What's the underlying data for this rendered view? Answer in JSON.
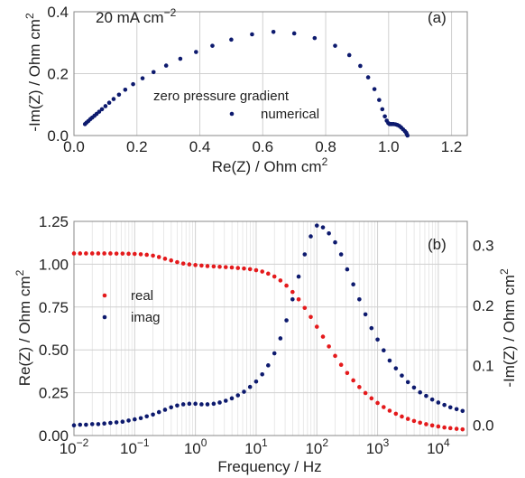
{
  "colors": {
    "real": "#e41a1c",
    "imag": "#0d1a6e",
    "grid": "#d0d0d0",
    "axis": "#888888"
  },
  "chart_data": [
    {
      "type": "scatter",
      "panel_label": "(a)",
      "annotation": "20 mA cm",
      "annotation_sup": "−2",
      "xlabel": "Re(Z) / Ohm cm",
      "xlabel_sup": "2",
      "ylabel": "-Im(Z) / Ohm cm",
      "ylabel_sup": "2",
      "xlim": [
        0.0,
        1.25
      ],
      "ylim": [
        0.0,
        0.4
      ],
      "xticks": [
        0.0,
        0.2,
        0.4,
        0.6,
        0.8,
        1.0,
        1.2
      ],
      "xtick_labels": [
        "0.0",
        "0.2",
        "0.4",
        "0.6",
        "0.8",
        "1.0",
        "1.2"
      ],
      "yticks": [
        0.0,
        0.2,
        0.4
      ],
      "ytick_labels": [
        "0.0",
        "0.2",
        "0.4"
      ],
      "grid": true,
      "legend": {
        "title": "zero pressure gradient",
        "entries": [
          "numerical"
        ],
        "placement": "center"
      },
      "series": [
        {
          "name": "numerical",
          "color": "#0d1a6e",
          "x": [
            0.035,
            0.04,
            0.046,
            0.052,
            0.058,
            0.065,
            0.072,
            0.08,
            0.089,
            0.1,
            0.112,
            0.126,
            0.143,
            0.163,
            0.188,
            0.218,
            0.253,
            0.293,
            0.338,
            0.388,
            0.44,
            0.5,
            0.566,
            0.634,
            0.7,
            0.765,
            0.83,
            0.875,
            0.91,
            0.935,
            0.955,
            0.97,
            0.98,
            0.988,
            0.994,
            0.999,
            1.003,
            1.007,
            1.011,
            1.016,
            1.022,
            1.028,
            1.034,
            1.04,
            1.046,
            1.052,
            1.056,
            1.058,
            1.06
          ],
          "y": [
            0.037,
            0.042,
            0.047,
            0.053,
            0.058,
            0.064,
            0.07,
            0.077,
            0.085,
            0.095,
            0.106,
            0.118,
            0.132,
            0.148,
            0.166,
            0.185,
            0.205,
            0.226,
            0.248,
            0.27,
            0.29,
            0.31,
            0.327,
            0.335,
            0.33,
            0.315,
            0.29,
            0.26,
            0.225,
            0.188,
            0.15,
            0.115,
            0.085,
            0.062,
            0.048,
            0.04,
            0.037,
            0.037,
            0.037,
            0.037,
            0.036,
            0.034,
            0.031,
            0.026,
            0.02,
            0.014,
            0.009,
            0.004,
            0.0
          ]
        }
      ]
    },
    {
      "type": "scatter",
      "panel_label": "(b)",
      "xlabel": "Frequency / Hz",
      "ylabel": "Re(Z) / Ohm cm",
      "ylabel_sup": "2",
      "y2label": "-Im(Z) / Ohm cm",
      "y2label_sup": "2",
      "x_scale": "log",
      "xlim": [
        0.01,
        30000
      ],
      "ylim": [
        0.0,
        1.25
      ],
      "y2lim": [
        -0.017,
        0.34
      ],
      "xticks": [
        0.01,
        0.1,
        1,
        10,
        100,
        1000,
        10000
      ],
      "xtick_labels": [
        "10",
        "10",
        "10",
        "10",
        "10",
        "10",
        "10"
      ],
      "xtick_sups": [
        "−2",
        "−1",
        "0",
        "1",
        "2",
        "3",
        "4"
      ],
      "yticks": [
        0.0,
        0.25,
        0.5,
        0.75,
        1.0,
        1.25
      ],
      "ytick_labels": [
        "0.00",
        "0.25",
        "0.50",
        "0.75",
        "1.00",
        "1.25"
      ],
      "y2ticks": [
        0.0,
        0.1,
        0.2,
        0.3
      ],
      "y2tick_labels": [
        "0.0",
        "0.1",
        "0.2",
        "0.3"
      ],
      "grid": true,
      "legend": {
        "entries": [
          "real",
          "imag"
        ],
        "placement": "center-left"
      },
      "series": [
        {
          "name": "real",
          "axis": "left",
          "color": "#e41a1c",
          "x": [
            0.01,
            0.0126,
            0.0158,
            0.02,
            0.0251,
            0.0316,
            0.0398,
            0.0501,
            0.0631,
            0.0794,
            0.1,
            0.126,
            0.158,
            0.2,
            0.251,
            0.316,
            0.398,
            0.501,
            0.631,
            0.794,
            1.0,
            1.26,
            1.58,
            2.0,
            2.51,
            3.16,
            3.98,
            5.01,
            6.31,
            7.94,
            10.0,
            12.6,
            15.8,
            20.0,
            25.1,
            31.6,
            39.8,
            50.1,
            63.1,
            79.4,
            100,
            126,
            158,
            200,
            251,
            316,
            398,
            501,
            631,
            794,
            1000,
            1260,
            1580,
            2000,
            2510,
            3160,
            3980,
            5010,
            6310,
            7940,
            10000,
            12600,
            15800,
            20000,
            25100,
            31600
          ],
          "y": [
            1.063,
            1.063,
            1.063,
            1.063,
            1.063,
            1.063,
            1.063,
            1.062,
            1.062,
            1.061,
            1.06,
            1.058,
            1.055,
            1.05,
            1.042,
            1.032,
            1.022,
            1.012,
            1.004,
            0.999,
            0.995,
            0.992,
            0.989,
            0.987,
            0.985,
            0.983,
            0.981,
            0.978,
            0.975,
            0.971,
            0.965,
            0.957,
            0.945,
            0.928,
            0.905,
            0.875,
            0.838,
            0.795,
            0.745,
            0.692,
            0.635,
            0.577,
            0.52,
            0.465,
            0.413,
            0.365,
            0.322,
            0.283,
            0.248,
            0.217,
            0.19,
            0.166,
            0.145,
            0.127,
            0.111,
            0.097,
            0.085,
            0.075,
            0.066,
            0.059,
            0.053,
            0.047,
            0.043,
            0.039,
            0.036,
            0.034
          ]
        },
        {
          "name": "imag",
          "axis": "right",
          "color": "#0d1a6e",
          "x": [
            0.01,
            0.0126,
            0.0158,
            0.02,
            0.0251,
            0.0316,
            0.0398,
            0.0501,
            0.0631,
            0.0794,
            0.1,
            0.126,
            0.158,
            0.2,
            0.251,
            0.316,
            0.398,
            0.501,
            0.631,
            0.794,
            1.0,
            1.26,
            1.58,
            2.0,
            2.51,
            3.16,
            3.98,
            5.01,
            6.31,
            7.94,
            10.0,
            12.6,
            15.8,
            20.0,
            25.1,
            31.6,
            39.8,
            50.1,
            63.1,
            79.4,
            100,
            126,
            158,
            200,
            251,
            316,
            398,
            501,
            631,
            794,
            1000,
            1260,
            1580,
            2000,
            2510,
            3160,
            3980,
            5010,
            6310,
            7940,
            10000,
            12600,
            15800,
            20000,
            25100,
            31600
          ],
          "y": [
            0.0,
            0.001,
            0.001,
            0.002,
            0.002,
            0.003,
            0.004,
            0.005,
            0.006,
            0.008,
            0.01,
            0.012,
            0.015,
            0.018,
            0.022,
            0.026,
            0.03,
            0.033,
            0.035,
            0.036,
            0.036,
            0.035,
            0.035,
            0.036,
            0.038,
            0.041,
            0.045,
            0.05,
            0.056,
            0.064,
            0.073,
            0.085,
            0.1,
            0.12,
            0.145,
            0.175,
            0.21,
            0.248,
            0.285,
            0.315,
            0.333,
            0.33,
            0.32,
            0.305,
            0.285,
            0.26,
            0.235,
            0.21,
            0.185,
            0.162,
            0.143,
            0.125,
            0.108,
            0.095,
            0.083,
            0.072,
            0.063,
            0.055,
            0.049,
            0.043,
            0.038,
            0.034,
            0.03,
            0.027,
            0.024,
            0.021
          ]
        }
      ]
    }
  ]
}
